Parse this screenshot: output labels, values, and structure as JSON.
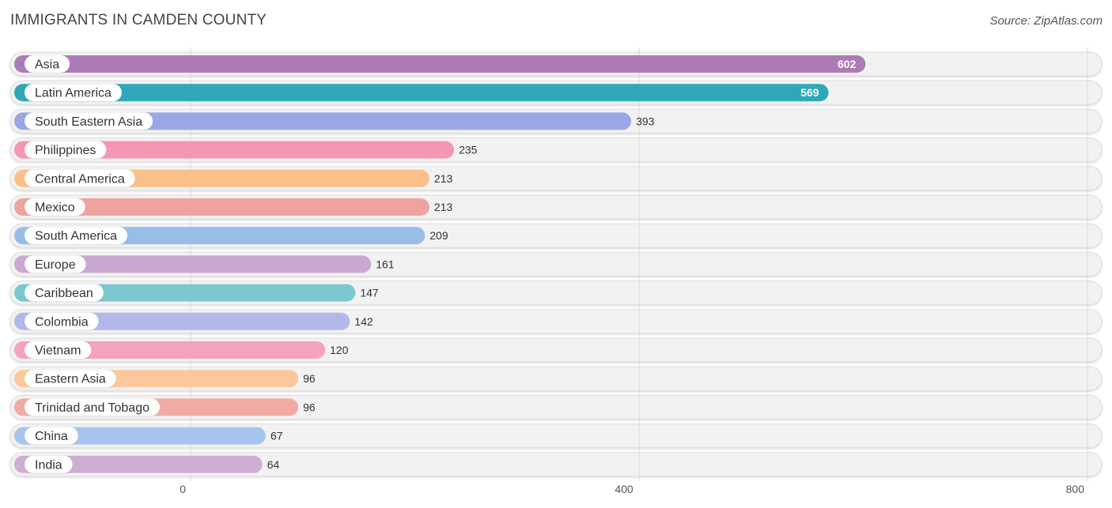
{
  "header": {
    "title": "IMMIGRANTS IN CAMDEN COUNTY",
    "source": "Source: ZipAtlas.com"
  },
  "chart_data": {
    "type": "bar",
    "orientation": "horizontal",
    "title": "IMMIGRANTS IN CAMDEN COUNTY",
    "xlabel": "",
    "ylabel": "",
    "xlim": [
      0,
      800
    ],
    "ticks": [
      0,
      400,
      800
    ],
    "grid": true,
    "categories": [
      "Asia",
      "Latin America",
      "South Eastern Asia",
      "Philippines",
      "Central America",
      "Mexico",
      "South America",
      "Europe",
      "Caribbean",
      "Colombia",
      "Vietnam",
      "Eastern Asia",
      "Trinidad and Tobago",
      "China",
      "India"
    ],
    "values": [
      602,
      569,
      393,
      235,
      213,
      213,
      209,
      161,
      147,
      142,
      120,
      96,
      96,
      67,
      64
    ],
    "colors": [
      "#ad7bb5",
      "#2ea8b8",
      "#9ba7e4",
      "#f596b2",
      "#fbbf8a",
      "#eea39f",
      "#9abde8",
      "#c9a9cf",
      "#7bc9cf",
      "#b2b8e8",
      "#f5a2bd",
      "#fbc89c",
      "#f2aaa6",
      "#a7c5ec",
      "#cfaed3"
    ]
  }
}
